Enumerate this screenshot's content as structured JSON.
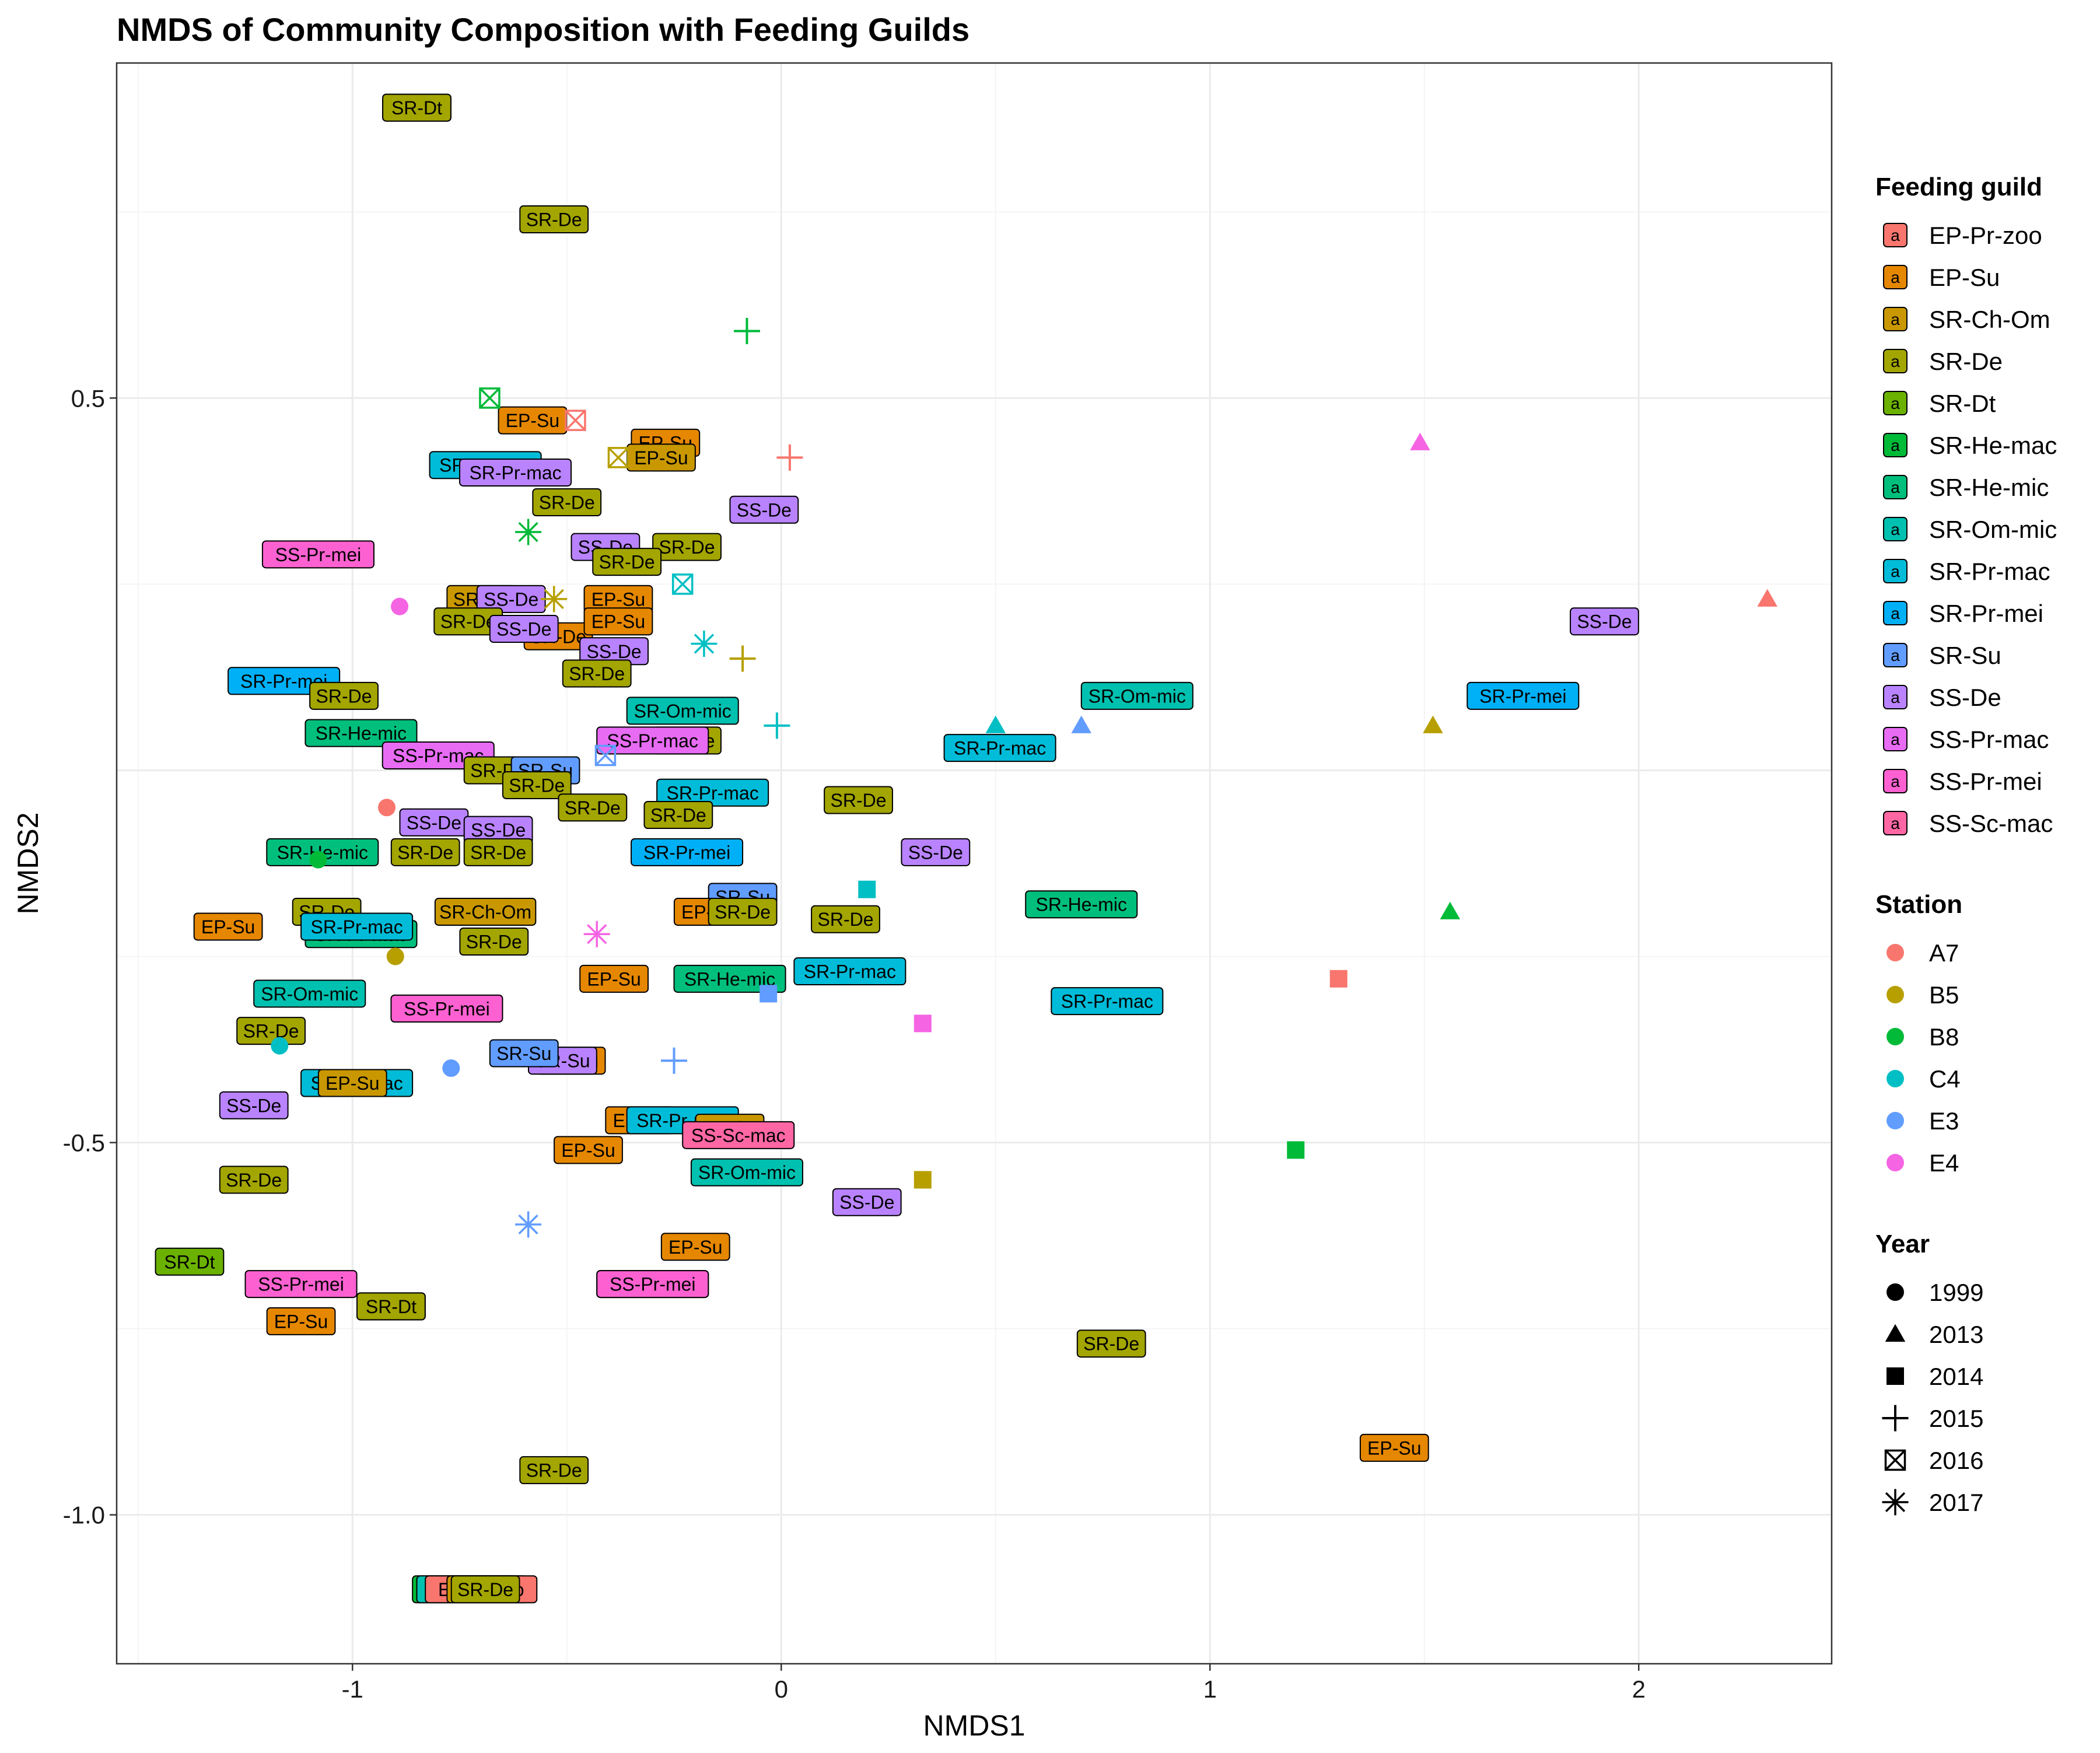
{
  "chart_data": {
    "type": "scatter",
    "title": "NMDS of Community Composition with Feeding Guilds",
    "xlabel": "NMDS1",
    "ylabel": "NMDS2",
    "xlim": [
      -1.55,
      2.45
    ],
    "ylim": [
      -1.2,
      0.95
    ],
    "x_ticks": [
      -1,
      0,
      1,
      2
    ],
    "x_tick_labels": [
      "-1",
      "0",
      "1",
      "2"
    ],
    "y_ticks": [
      -1.0,
      -0.5,
      0.5
    ],
    "y_tick_labels": [
      "-1.0",
      "-0.5",
      "0.5"
    ],
    "grid": true,
    "legend_position": "right",
    "legends": {
      "guild": {
        "title": "Feeding guild",
        "key_glyph": "a",
        "items": [
          {
            "name": "EP-Pr-zoo",
            "color": "#F8766D"
          },
          {
            "name": "EP-Su",
            "color": "#E58700"
          },
          {
            "name": "SR-Ch-Om",
            "color": "#C99800"
          },
          {
            "name": "SR-De",
            "color": "#A3A500"
          },
          {
            "name": "SR-Dt",
            "color": "#6BB100"
          },
          {
            "name": "SR-He-mac",
            "color": "#00BA38"
          },
          {
            "name": "SR-He-mic",
            "color": "#00BF7D"
          },
          {
            "name": "SR-Om-mic",
            "color": "#00C0AF"
          },
          {
            "name": "SR-Pr-mac",
            "color": "#00BCD8"
          },
          {
            "name": "SR-Pr-mei",
            "color": "#00B0F6"
          },
          {
            "name": "SR-Su",
            "color": "#619CFF"
          },
          {
            "name": "SS-De",
            "color": "#B983FF"
          },
          {
            "name": "SS-Pr-mac",
            "color": "#E76BF3"
          },
          {
            "name": "SS-Pr-mei",
            "color": "#FD61D1"
          },
          {
            "name": "SS-Sc-mac",
            "color": "#FF67A4"
          }
        ]
      },
      "station": {
        "title": "Station",
        "items": [
          {
            "name": "A7",
            "color": "#F8766D"
          },
          {
            "name": "B5",
            "color": "#B79F00"
          },
          {
            "name": "B8",
            "color": "#00BA38"
          },
          {
            "name": "C4",
            "color": "#00BFC4"
          },
          {
            "name": "E3",
            "color": "#619CFF"
          },
          {
            "name": "E4",
            "color": "#F564E3"
          }
        ]
      },
      "year": {
        "title": "Year",
        "items": [
          {
            "name": "1999",
            "shape": "circle"
          },
          {
            "name": "2013",
            "shape": "triangle"
          },
          {
            "name": "2014",
            "shape": "square"
          },
          {
            "name": "2015",
            "shape": "plus"
          },
          {
            "name": "2016",
            "shape": "boxcross"
          },
          {
            "name": "2017",
            "shape": "asterisk"
          }
        ]
      }
    },
    "points": [
      {
        "x": -0.92,
        "y": -0.05,
        "station": "A7",
        "year": "1999"
      },
      {
        "x": -0.9,
        "y": -0.25,
        "station": "B5",
        "year": "1999"
      },
      {
        "x": -1.08,
        "y": -0.12,
        "station": "B8",
        "year": "1999"
      },
      {
        "x": -1.17,
        "y": -0.37,
        "station": "C4",
        "year": "1999"
      },
      {
        "x": -0.77,
        "y": -0.4,
        "station": "E3",
        "year": "1999"
      },
      {
        "x": -0.89,
        "y": 0.22,
        "station": "E4",
        "year": "1999"
      },
      {
        "x": 2.3,
        "y": 0.23,
        "station": "A7",
        "year": "2013"
      },
      {
        "x": 1.52,
        "y": 0.06,
        "station": "B5",
        "year": "2013"
      },
      {
        "x": 1.56,
        "y": -0.19,
        "station": "B8",
        "year": "2013"
      },
      {
        "x": 0.5,
        "y": 0.06,
        "station": "C4",
        "year": "2013"
      },
      {
        "x": 0.7,
        "y": 0.06,
        "station": "E3",
        "year": "2013"
      },
      {
        "x": 1.49,
        "y": 0.44,
        "station": "E4",
        "year": "2013"
      },
      {
        "x": 1.3,
        "y": -0.28,
        "station": "A7",
        "year": "2014"
      },
      {
        "x": 0.33,
        "y": -0.55,
        "station": "B5",
        "year": "2014"
      },
      {
        "x": 1.2,
        "y": -0.51,
        "station": "B8",
        "year": "2014"
      },
      {
        "x": 0.2,
        "y": -0.16,
        "station": "C4",
        "year": "2014"
      },
      {
        "x": -0.03,
        "y": -0.3,
        "station": "E3",
        "year": "2014"
      },
      {
        "x": 0.33,
        "y": -0.34,
        "station": "E4",
        "year": "2014"
      },
      {
        "x": 0.02,
        "y": 0.42,
        "station": "A7",
        "year": "2015"
      },
      {
        "x": -0.09,
        "y": 0.15,
        "station": "B5",
        "year": "2015"
      },
      {
        "x": -0.08,
        "y": 0.59,
        "station": "B8",
        "year": "2015"
      },
      {
        "x": -0.01,
        "y": 0.06,
        "station": "C4",
        "year": "2015"
      },
      {
        "x": -0.25,
        "y": -0.39,
        "station": "E3",
        "year": "2015"
      },
      {
        "x": -0.48,
        "y": 0.47,
        "station": "A7",
        "year": "2016"
      },
      {
        "x": -0.38,
        "y": 0.42,
        "station": "B5",
        "year": "2016"
      },
      {
        "x": -0.68,
        "y": 0.5,
        "station": "B8",
        "year": "2016"
      },
      {
        "x": -0.23,
        "y": 0.25,
        "station": "C4",
        "year": "2016"
      },
      {
        "x": -0.41,
        "y": 0.02,
        "station": "E3",
        "year": "2016"
      },
      {
        "x": -0.53,
        "y": 0.23,
        "station": "B5",
        "year": "2017"
      },
      {
        "x": -0.59,
        "y": 0.32,
        "station": "B8",
        "year": "2017"
      },
      {
        "x": -0.18,
        "y": 0.17,
        "station": "C4",
        "year": "2017"
      },
      {
        "x": -0.59,
        "y": -0.61,
        "station": "E3",
        "year": "2017"
      },
      {
        "x": -0.43,
        "y": -0.22,
        "station": "E4",
        "year": "2017"
      }
    ],
    "labels": [
      {
        "text": "SR-Dt",
        "guild": "SR-Dt",
        "x": -0.85,
        "y": 0.89
      },
      {
        "text": "SR-Dt",
        "guild": "SR-De",
        "x": -0.85,
        "y": 0.89
      },
      {
        "text": "SR-De",
        "guild": "SR-De",
        "x": -0.53,
        "y": 0.74
      },
      {
        "text": "EP-Su",
        "guild": "EP-Su",
        "x": -0.58,
        "y": 0.47
      },
      {
        "text": "EP-Su",
        "guild": "EP-Su",
        "x": -0.27,
        "y": 0.44
      },
      {
        "text": "EP-Su",
        "guild": "SR-Ch-Om",
        "x": -0.28,
        "y": 0.42
      },
      {
        "text": "SR-Pr-mac",
        "guild": "SR-Pr-mac",
        "x": -0.69,
        "y": 0.41
      },
      {
        "text": "SR-Pr-mac",
        "guild": "SS-De",
        "x": -0.62,
        "y": 0.4
      },
      {
        "text": "SR-De",
        "guild": "SR-De",
        "x": -0.5,
        "y": 0.36
      },
      {
        "text": "SS-De",
        "guild": "SS-De",
        "x": -0.04,
        "y": 0.35
      },
      {
        "text": "SS-Pr-mei",
        "guild": "SS-Pr-mei",
        "x": -1.08,
        "y": 0.29
      },
      {
        "text": "SS-De",
        "guild": "SS-De",
        "x": -0.41,
        "y": 0.3
      },
      {
        "text": "SR-De",
        "guild": "SR-De",
        "x": -0.22,
        "y": 0.3
      },
      {
        "text": "SR-De",
        "guild": "SR-De",
        "x": -0.36,
        "y": 0.28
      },
      {
        "text": "SR-De",
        "guild": "SR-Ch-Om",
        "x": -0.7,
        "y": 0.23
      },
      {
        "text": "SS-De",
        "guild": "SS-De",
        "x": -0.63,
        "y": 0.23
      },
      {
        "text": "EP-Su",
        "guild": "EP-Su",
        "x": -0.38,
        "y": 0.23
      },
      {
        "text": "SR-De",
        "guild": "SR-De",
        "x": -0.73,
        "y": 0.2
      },
      {
        "text": "SR-De",
        "guild": "EP-Su",
        "x": -0.52,
        "y": 0.18
      },
      {
        "text": "SS-De",
        "guild": "SS-De",
        "x": -0.6,
        "y": 0.19
      },
      {
        "text": "EP-Su",
        "guild": "EP-Su",
        "x": -0.38,
        "y": 0.2
      },
      {
        "text": "SS-De",
        "guild": "SS-De",
        "x": -0.39,
        "y": 0.16
      },
      {
        "text": "SR-De",
        "guild": "SR-De",
        "x": -0.43,
        "y": 0.13
      },
      {
        "text": "SR-Pr-mei",
        "guild": "SR-Pr-mei",
        "x": -1.16,
        "y": 0.12
      },
      {
        "text": "SR-De",
        "guild": "SR-De",
        "x": -1.02,
        "y": 0.1
      },
      {
        "text": "SR-Om-mic",
        "guild": "SR-Om-mic",
        "x": -0.23,
        "y": 0.08
      },
      {
        "text": "SR-Om-mic",
        "guild": "SR-Om-mic",
        "x": 0.83,
        "y": 0.1
      },
      {
        "text": "SR-Pr-mei",
        "guild": "SR-Pr-mei",
        "x": 1.73,
        "y": 0.1
      },
      {
        "text": "SS-De",
        "guild": "SS-De",
        "x": 1.92,
        "y": 0.2
      },
      {
        "text": "SR-He-mic",
        "guild": "SR-He-mic",
        "x": -0.98,
        "y": 0.05
      },
      {
        "text": "SR-De",
        "guild": "SR-De",
        "x": -0.22,
        "y": 0.04
      },
      {
        "text": "SS-Pr-mac",
        "guild": "SS-Pr-mac",
        "x": -0.3,
        "y": 0.04
      },
      {
        "text": "SR-Pr-mac",
        "guild": "SR-Pr-mac",
        "x": 0.51,
        "y": 0.03
      },
      {
        "text": "SS-Pr-mac",
        "guild": "SS-Pr-mac",
        "x": -0.8,
        "y": 0.02
      },
      {
        "text": "SR-De",
        "guild": "SR-De",
        "x": -0.66,
        "y": 0.0
      },
      {
        "text": "SR-Su",
        "guild": "SR-Su",
        "x": -0.55,
        "y": 0.0
      },
      {
        "text": "SR-De",
        "guild": "SR-De",
        "x": -0.57,
        "y": -0.02
      },
      {
        "text": "SR-Pr-mac",
        "guild": "SR-Pr-mac",
        "x": -0.16,
        "y": -0.03
      },
      {
        "text": "SR-De",
        "guild": "SR-De",
        "x": 0.18,
        "y": -0.04
      },
      {
        "text": "SR-De",
        "guild": "SR-De",
        "x": -0.44,
        "y": -0.05
      },
      {
        "text": "SS-De",
        "guild": "SS-De",
        "x": -0.81,
        "y": -0.07
      },
      {
        "text": "SR-De",
        "guild": "SR-De",
        "x": -0.24,
        "y": -0.06
      },
      {
        "text": "SS-De",
        "guild": "SS-De",
        "x": -0.66,
        "y": -0.08
      },
      {
        "text": "SR-He-mic",
        "guild": "SR-He-mic",
        "x": -1.07,
        "y": -0.11
      },
      {
        "text": "SR-De",
        "guild": "SR-De",
        "x": -0.66,
        "y": -0.11
      },
      {
        "text": "SR-De",
        "guild": "SR-De",
        "x": -0.83,
        "y": -0.11
      },
      {
        "text": "SR-Pr-mei",
        "guild": "SR-Pr-mei",
        "x": -0.22,
        "y": -0.11
      },
      {
        "text": "SS-De",
        "guild": "SS-De",
        "x": 0.36,
        "y": -0.11
      },
      {
        "text": "SR-Su",
        "guild": "SR-Su",
        "x": -0.09,
        "y": -0.17
      },
      {
        "text": "SR-He-mic",
        "guild": "SR-He-mic",
        "x": 0.7,
        "y": -0.18
      },
      {
        "text": "SR-Ch-Om",
        "guild": "SR-Ch-Om",
        "x": -0.69,
        "y": -0.19
      },
      {
        "text": "SR-De",
        "guild": "SR-De",
        "x": -1.06,
        "y": -0.19
      },
      {
        "text": "EP-Su",
        "guild": "EP-Su",
        "x": -0.17,
        "y": -0.19
      },
      {
        "text": "SR-De",
        "guild": "SR-De",
        "x": -0.09,
        "y": -0.19
      },
      {
        "text": "SR-De",
        "guild": "SR-De",
        "x": 0.15,
        "y": -0.2
      },
      {
        "text": "EP-Su",
        "guild": "EP-Su",
        "x": -1.29,
        "y": -0.21
      },
      {
        "text": "SR-Pr-mac",
        "guild": "SR-He-mic",
        "x": -0.98,
        "y": -0.22
      },
      {
        "text": "SR-Pr-mac",
        "guild": "SR-Pr-mac",
        "x": -0.99,
        "y": -0.21
      },
      {
        "text": "SR-De",
        "guild": "SR-De",
        "x": -0.67,
        "y": -0.23
      },
      {
        "text": "EP-Su",
        "guild": "EP-Su",
        "x": -0.39,
        "y": -0.28
      },
      {
        "text": "SR-He-mic",
        "guild": "SR-He-mic",
        "x": -0.12,
        "y": -0.28
      },
      {
        "text": "SR-Pr-mac",
        "guild": "SR-Pr-mac",
        "x": 0.16,
        "y": -0.27
      },
      {
        "text": "SR-Om-mic",
        "guild": "SR-Om-mic",
        "x": -1.1,
        "y": -0.3
      },
      {
        "text": "SS-Pr-mei",
        "guild": "SS-Pr-mei",
        "x": -0.78,
        "y": -0.32
      },
      {
        "text": "SR-Pr-mac",
        "guild": "SR-Pr-mac",
        "x": 0.76,
        "y": -0.31
      },
      {
        "text": "SR-De",
        "guild": "SR-De",
        "x": -1.19,
        "y": -0.35
      },
      {
        "text": "SR-Su",
        "guild": "EP-Su",
        "x": -0.49,
        "y": -0.39
      },
      {
        "text": "SR-Su",
        "guild": "SS-De",
        "x": -0.51,
        "y": -0.39
      },
      {
        "text": "SR-Su",
        "guild": "SR-Su",
        "x": -0.6,
        "y": -0.38
      },
      {
        "text": "SR-Pr-mac",
        "guild": "SR-Pr-mac",
        "x": -0.99,
        "y": -0.42
      },
      {
        "text": "EP-Su",
        "guild": "SR-Ch-Om",
        "x": -1.0,
        "y": -0.42
      },
      {
        "text": "SS-De",
        "guild": "SS-De",
        "x": -1.23,
        "y": -0.45
      },
      {
        "text": "EP-Su",
        "guild": "EP-Su",
        "x": -0.33,
        "y": -0.47
      },
      {
        "text": "SR-Pr-mac",
        "guild": "SR-Pr-mac",
        "x": -0.23,
        "y": -0.47
      },
      {
        "text": "EP-Su",
        "guild": "SR-Ch-Om",
        "x": -0.12,
        "y": -0.48
      },
      {
        "text": "SS-Sc-mac",
        "guild": "SS-Sc-mac",
        "x": -0.1,
        "y": -0.49
      },
      {
        "text": "EP-Su",
        "guild": "EP-Su",
        "x": -0.45,
        "y": -0.51
      },
      {
        "text": "SR-Om-mic",
        "guild": "SR-Om-mic",
        "x": -0.08,
        "y": -0.54
      },
      {
        "text": "SS-De",
        "guild": "SS-De",
        "x": 0.2,
        "y": -0.58
      },
      {
        "text": "SR-De",
        "guild": "SR-De",
        "x": -1.23,
        "y": -0.55
      },
      {
        "text": "EP-Su",
        "guild": "EP-Su",
        "x": -0.2,
        "y": -0.64
      },
      {
        "text": "SR-Dt",
        "guild": "SR-Dt",
        "x": -1.38,
        "y": -0.66
      },
      {
        "text": "SS-Pr-mei",
        "guild": "SS-Pr-mei",
        "x": -1.12,
        "y": -0.69
      },
      {
        "text": "SS-Pr-mei",
        "guild": "SS-Pr-mac",
        "x": -0.3,
        "y": -0.69
      },
      {
        "text": "SS-Pr-mei",
        "guild": "SS-Pr-mei",
        "x": -0.3,
        "y": -0.69
      },
      {
        "text": "SR-Dt",
        "guild": "SR-Dt",
        "x": -0.91,
        "y": -0.72
      },
      {
        "text": "SR-Dt",
        "guild": "SR-De",
        "x": -0.91,
        "y": -0.72
      },
      {
        "text": "EP-Su",
        "guild": "EP-Su",
        "x": -1.12,
        "y": -0.74
      },
      {
        "text": "SR-De",
        "guild": "SR-De",
        "x": 0.77,
        "y": -0.77
      },
      {
        "text": "EP-Su",
        "guild": "EP-Su",
        "x": 1.43,
        "y": -0.91
      },
      {
        "text": "SR-De",
        "guild": "SR-De",
        "x": -0.53,
        "y": -0.94
      },
      {
        "text": "EP-Pr-zoo",
        "guild": "SR-He-mac",
        "x": -0.73,
        "y": -1.1
      },
      {
        "text": "EP-Pr-zoo",
        "guild": "SR-Om-mic",
        "x": -0.72,
        "y": -1.1
      },
      {
        "text": "EP-Pr-zoo",
        "guild": "EP-Pr-zoo",
        "x": -0.7,
        "y": -1.1
      },
      {
        "text": "SR-De",
        "guild": "SR-Ch-Om",
        "x": -0.7,
        "y": -1.1
      },
      {
        "text": "SR-De",
        "guild": "SR-De",
        "x": -0.69,
        "y": -1.1
      }
    ]
  }
}
